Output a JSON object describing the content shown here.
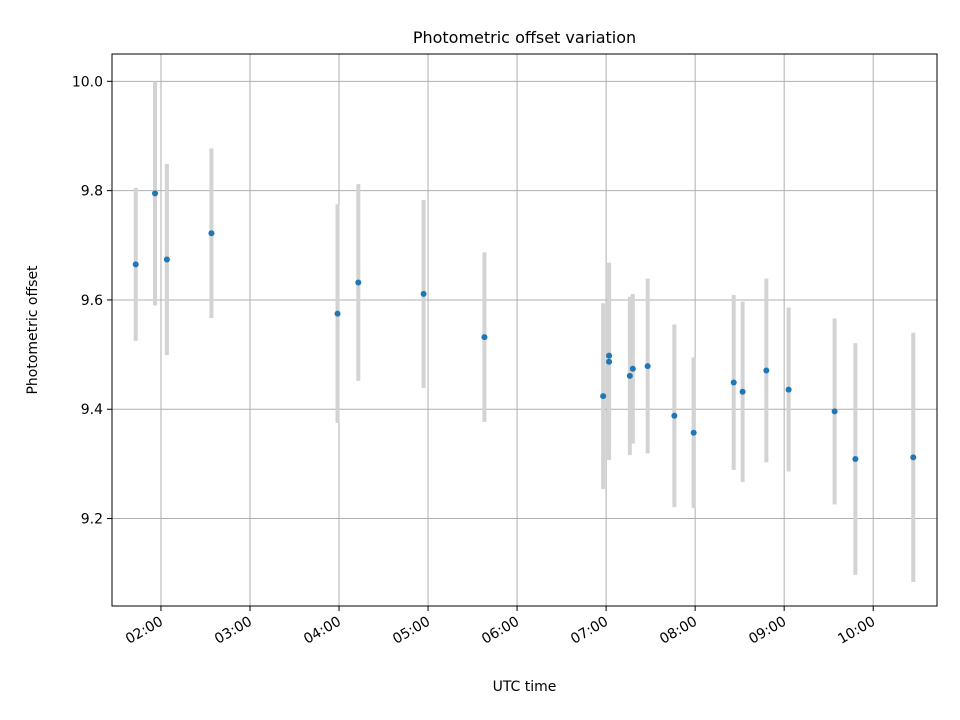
{
  "chart_data": {
    "type": "scatter",
    "title": "Photometric offset variation",
    "xlabel": "UTC time",
    "ylabel": "Photometric offset",
    "x_unit": "hours UTC",
    "xlim": [
      "01:27",
      "10:43"
    ],
    "ylim": [
      9.04,
      10.05
    ],
    "grid": true,
    "x_ticks": [
      "02:00",
      "03:00",
      "04:00",
      "05:00",
      "06:00",
      "07:00",
      "08:00",
      "09:00",
      "10:00"
    ],
    "y_ticks": [
      "9.2",
      "9.4",
      "9.6",
      "9.8",
      "10.0"
    ],
    "errorbar_color": "#d3d3d3",
    "point_color": "#1f77b4",
    "series": [
      {
        "x": [
          "01:43",
          "01:56",
          "02:04",
          "02:34",
          "03:59",
          "04:13",
          "04:57",
          "05:38",
          "06:58",
          "07:02",
          "07:02",
          "07:16",
          "07:18",
          "07:28",
          "07:46",
          "07:59",
          "08:26",
          "08:32",
          "08:48",
          "09:03",
          "09:34",
          "09:48",
          "10:27"
        ],
        "y": [
          9.665,
          9.795,
          9.674,
          9.722,
          9.575,
          9.632,
          9.611,
          9.532,
          9.424,
          9.487,
          9.498,
          9.461,
          9.474,
          9.479,
          9.388,
          9.357,
          9.449,
          9.432,
          9.471,
          9.436,
          9.396,
          9.309,
          9.312
        ],
        "err": [
          0.14,
          0.205,
          0.175,
          0.155,
          0.2,
          0.18,
          0.172,
          0.155,
          0.17,
          0.18,
          0.17,
          0.145,
          0.137,
          0.16,
          0.167,
          0.138,
          0.16,
          0.165,
          0.168,
          0.15,
          0.17,
          0.212,
          0.228
        ]
      }
    ]
  }
}
